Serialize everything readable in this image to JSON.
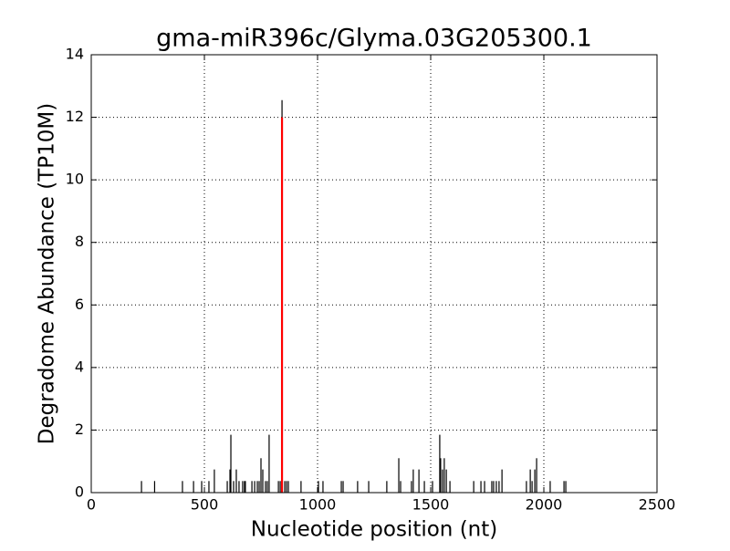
{
  "chart_data": {
    "type": "stem",
    "title": "gma-miR396c/Glyma.03G205300.1",
    "x_label": "Nucleotide position (nt)",
    "y_label": "Degradome Abundance (TP10M)",
    "xlim": [
      0,
      2500
    ],
    "xticks": [
      0,
      500,
      1000,
      1500,
      2000,
      2500
    ],
    "ylim": [
      0,
      14
    ],
    "yticks": [
      0,
      2,
      4,
      6,
      8,
      10,
      12,
      14
    ],
    "grid": true,
    "series": [
      {
        "color": "#000000",
        "x": [
          222,
          280,
          403,
          452,
          488,
          520,
          544,
          601,
          613,
          617,
          629,
          641,
          653,
          669,
          677,
          681,
          710,
          722,
          734,
          742,
          750,
          758,
          770,
          778,
          786,
          827,
          835,
          843,
          855,
          863,
          871,
          927,
          1004,
          1024,
          1105,
          1113,
          1177,
          1226,
          1306,
          1359,
          1367,
          1415,
          1423,
          1448,
          1472,
          1508,
          1540,
          1544,
          1552,
          1560,
          1569,
          1585,
          1690,
          1722,
          1738,
          1770,
          1778,
          1790,
          1802,
          1815,
          1923,
          1940,
          1948,
          1960,
          1968,
          2028,
          2089,
          2097
        ],
        "values": [
          0.37,
          0.37,
          0.37,
          0.37,
          0.37,
          0.37,
          0.74,
          0.37,
          0.74,
          1.85,
          0.37,
          0.74,
          0.37,
          0.37,
          0.37,
          0.37,
          0.37,
          0.37,
          0.37,
          0.37,
          1.1,
          0.74,
          0.37,
          0.37,
          1.85,
          0.37,
          0.37,
          12.55,
          0.37,
          0.37,
          0.37,
          0.37,
          0.37,
          0.37,
          0.37,
          0.37,
          0.37,
          0.37,
          0.37,
          1.1,
          0.37,
          0.37,
          0.74,
          0.74,
          0.37,
          0.37,
          1.85,
          1.1,
          0.74,
          1.1,
          0.74,
          0.37,
          0.37,
          0.37,
          0.37,
          0.37,
          0.37,
          0.37,
          0.37,
          0.74,
          0.37,
          0.74,
          0.37,
          0.74,
          1.1,
          0.37,
          0.37,
          0.37
        ]
      },
      {
        "color": "#ff0000",
        "x": [
          843
        ],
        "values": [
          12
        ]
      }
    ]
  }
}
